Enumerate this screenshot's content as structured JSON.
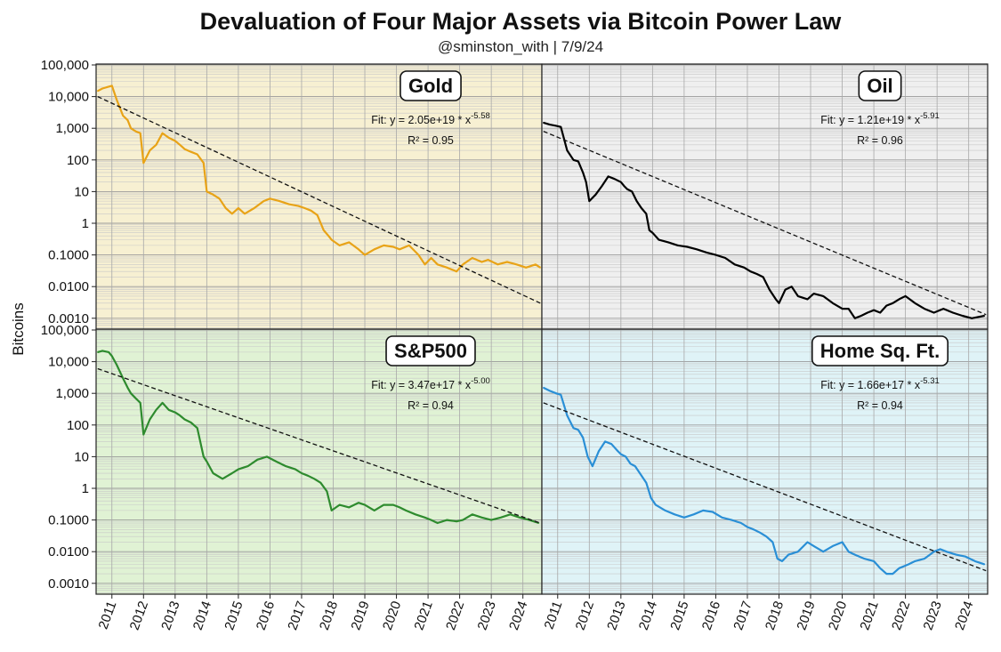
{
  "header": {
    "title": "Devaluation of Four Major Assets via Bitcoin Power Law",
    "subtitle": "@sminston_with  |  7/9/24"
  },
  "shared_axis": {
    "ylabel": "Bitcoins",
    "y_tick_labels": [
      "100,000",
      "10,000",
      "1,000",
      "100",
      "10",
      "1",
      "0.1000",
      "0.0100",
      "0.0010"
    ],
    "y_tick_values": [
      100000,
      10000,
      1000,
      100,
      10,
      1,
      0.1,
      0.01,
      0.001
    ],
    "x_tick_labels": [
      "2011",
      "2012",
      "2013",
      "2014",
      "2015",
      "2016",
      "2017",
      "2018",
      "2019",
      "2020",
      "2021",
      "2022",
      "2023",
      "2024"
    ]
  },
  "chart_data": [
    {
      "type": "line",
      "title": "Gold",
      "fit_prefix": "Fit: y = 2.05e+19 * x",
      "fit_exponent": "-5.58",
      "r2": "R² = 0.95",
      "yscale": "log",
      "ylim": [
        0.0005,
        100000
      ],
      "xlim": [
        2010.5,
        2024.6
      ],
      "colors": {
        "line": "#e8a317",
        "background": "#f7f0d2"
      },
      "series": [
        {
          "x": [
            2010.55,
            2010.7,
            2010.85,
            2011.0,
            2011.15,
            2011.35,
            2011.5,
            2011.6,
            2011.75,
            2011.9,
            2012.0,
            2012.2,
            2012.4,
            2012.6,
            2012.8,
            2013.0,
            2013.15,
            2013.3,
            2013.5,
            2013.7,
            2013.9,
            2014.0,
            2014.2,
            2014.4,
            2014.6,
            2014.8,
            2015.0,
            2015.2,
            2015.5,
            2015.8,
            2016.0,
            2016.3,
            2016.6,
            2016.9,
            2017.1,
            2017.3,
            2017.5,
            2017.7,
            2017.85,
            2017.95,
            2018.2,
            2018.5,
            2018.8,
            2019.0,
            2019.3,
            2019.6,
            2019.9,
            2020.1,
            2020.4,
            2020.7,
            2020.9,
            2021.1,
            2021.3,
            2021.6,
            2021.9,
            2022.1,
            2022.4,
            2022.7,
            2022.9,
            2023.2,
            2023.5,
            2023.8,
            2024.1,
            2024.4,
            2024.55
          ],
          "y": [
            15000,
            18000,
            20000,
            22000,
            8000,
            2500,
            1800,
            1000,
            800,
            700,
            80,
            200,
            300,
            700,
            500,
            400,
            300,
            220,
            180,
            150,
            80,
            10,
            8,
            6,
            3,
            2,
            3,
            2,
            3,
            5,
            6,
            5,
            4,
            3.5,
            3,
            2.5,
            1.8,
            0.6,
            0.4,
            0.3,
            0.2,
            0.25,
            0.15,
            0.1,
            0.15,
            0.2,
            0.18,
            0.15,
            0.2,
            0.1,
            0.05,
            0.08,
            0.05,
            0.04,
            0.03,
            0.05,
            0.08,
            0.06,
            0.07,
            0.05,
            0.06,
            0.05,
            0.04,
            0.05,
            0.04
          ],
          "fit_line": {
            "x": [
              2010.55,
              2024.55
            ],
            "y": [
              10000,
              0.003
            ]
          }
        }
      ]
    },
    {
      "type": "line",
      "title": "Oil",
      "fit_prefix": "Fit: y = 1.21e+19 * x",
      "fit_exponent": "-5.91",
      "r2": "R² = 0.96",
      "yscale": "log",
      "ylim": [
        0.0005,
        100000
      ],
      "xlim": [
        2010.5,
        2024.6
      ],
      "colors": {
        "line": "#000000",
        "background": "#efefef"
      },
      "series": [
        {
          "x": [
            2010.55,
            2010.75,
            2010.95,
            2011.1,
            2011.3,
            2011.5,
            2011.65,
            2011.8,
            2011.9,
            2012.0,
            2012.2,
            2012.4,
            2012.6,
            2012.8,
            2013.0,
            2013.1,
            2013.2,
            2013.35,
            2013.5,
            2013.65,
            2013.8,
            2013.9,
            2014.0,
            2014.2,
            2014.5,
            2014.8,
            2015.1,
            2015.4,
            2015.7,
            2016.0,
            2016.3,
            2016.6,
            2016.9,
            2017.1,
            2017.3,
            2017.5,
            2017.7,
            2017.9,
            2018.0,
            2018.2,
            2018.4,
            2018.6,
            2018.9,
            2019.1,
            2019.4,
            2019.7,
            2020.0,
            2020.2,
            2020.4,
            2020.6,
            2020.8,
            2021.0,
            2021.2,
            2021.4,
            2021.6,
            2021.8,
            2022.0,
            2022.3,
            2022.6,
            2022.9,
            2023.2,
            2023.5,
            2023.8,
            2024.1,
            2024.5
          ],
          "y": [
            1500,
            1300,
            1200,
            1100,
            200,
            100,
            90,
            40,
            20,
            5,
            8,
            15,
            30,
            25,
            20,
            15,
            12,
            10,
            5,
            3,
            2,
            0.6,
            0.5,
            0.3,
            0.25,
            0.2,
            0.18,
            0.15,
            0.12,
            0.1,
            0.08,
            0.05,
            0.04,
            0.03,
            0.025,
            0.02,
            0.008,
            0.004,
            0.003,
            0.008,
            0.01,
            0.005,
            0.004,
            0.006,
            0.005,
            0.003,
            0.002,
            0.002,
            0.001,
            0.0012,
            0.0015,
            0.0018,
            0.0015,
            0.0025,
            0.003,
            0.004,
            0.005,
            0.003,
            0.002,
            0.0015,
            0.002,
            0.0015,
            0.0012,
            0.001,
            0.0012
          ],
          "fit_line": {
            "x": [
              2010.55,
              2024.55
            ],
            "y": [
              800,
              0.0013
            ]
          }
        }
      ]
    },
    {
      "type": "line",
      "title": "S&P500",
      "fit_prefix": "Fit: y = 3.47e+17 * x",
      "fit_exponent": "-5.00",
      "r2": "R² = 0.94",
      "yscale": "log",
      "ylim": [
        0.0005,
        100000
      ],
      "xlim": [
        2010.5,
        2024.6
      ],
      "colors": {
        "line": "#2e8b2e",
        "background": "#e0f2d4"
      },
      "series": [
        {
          "x": [
            2010.55,
            2010.7,
            2010.9,
            2011.0,
            2011.15,
            2011.35,
            2011.5,
            2011.6,
            2011.75,
            2011.9,
            2012.0,
            2012.2,
            2012.4,
            2012.6,
            2012.8,
            2013.0,
            2013.15,
            2013.3,
            2013.5,
            2013.7,
            2013.9,
            2014.0,
            2014.2,
            2014.5,
            2014.8,
            2015.0,
            2015.3,
            2015.6,
            2015.9,
            2016.2,
            2016.5,
            2016.8,
            2017.0,
            2017.2,
            2017.4,
            2017.6,
            2017.8,
            2017.95,
            2018.2,
            2018.5,
            2018.8,
            2019.0,
            2019.3,
            2019.6,
            2019.9,
            2020.1,
            2020.3,
            2020.6,
            2020.9,
            2021.1,
            2021.3,
            2021.6,
            2021.9,
            2022.1,
            2022.4,
            2022.7,
            2023.0,
            2023.3,
            2023.6,
            2023.9,
            2024.2,
            2024.5
          ],
          "y": [
            20000,
            22000,
            20000,
            15000,
            8000,
            3000,
            1500,
            1000,
            700,
            500,
            50,
            150,
            300,
            500,
            300,
            250,
            200,
            150,
            120,
            80,
            10,
            7,
            3,
            2,
            3,
            4,
            5,
            8,
            10,
            7,
            5,
            4,
            3,
            2.5,
            2,
            1.5,
            0.8,
            0.2,
            0.3,
            0.25,
            0.35,
            0.3,
            0.2,
            0.3,
            0.3,
            0.25,
            0.2,
            0.15,
            0.12,
            0.1,
            0.08,
            0.1,
            0.09,
            0.1,
            0.15,
            0.12,
            0.1,
            0.12,
            0.15,
            0.12,
            0.1,
            0.08
          ],
          "fit_line": {
            "x": [
              2010.55,
              2024.55
            ],
            "y": [
              6000,
              0.08
            ]
          }
        }
      ]
    },
    {
      "type": "line",
      "title": "Home Sq. Ft.",
      "fit_prefix": "Fit: y = 1.66e+17 * x",
      "fit_exponent": "-5.31",
      "r2": "R² = 0.94",
      "yscale": "log",
      "ylim": [
        0.0005,
        100000
      ],
      "xlim": [
        2010.5,
        2024.6
      ],
      "colors": {
        "line": "#2a8fd6",
        "background": "#dff3f7"
      },
      "series": [
        {
          "x": [
            2010.55,
            2010.75,
            2010.95,
            2011.1,
            2011.3,
            2011.5,
            2011.65,
            2011.8,
            2011.95,
            2012.1,
            2012.3,
            2012.5,
            2012.7,
            2012.9,
            2013.0,
            2013.15,
            2013.3,
            2013.45,
            2013.6,
            2013.8,
            2013.95,
            2014.1,
            2014.4,
            2014.7,
            2015.0,
            2015.3,
            2015.6,
            2015.9,
            2016.2,
            2016.5,
            2016.8,
            2017.0,
            2017.2,
            2017.4,
            2017.6,
            2017.8,
            2017.95,
            2018.1,
            2018.3,
            2018.6,
            2018.9,
            2019.1,
            2019.4,
            2019.7,
            2020.0,
            2020.2,
            2020.4,
            2020.7,
            2021.0,
            2021.2,
            2021.4,
            2021.6,
            2021.8,
            2022.1,
            2022.3,
            2022.6,
            2022.9,
            2023.1,
            2023.3,
            2023.6,
            2023.9,
            2024.2,
            2024.5
          ],
          "y": [
            1500,
            1200,
            1000,
            900,
            200,
            80,
            70,
            40,
            10,
            5,
            15,
            30,
            25,
            15,
            12,
            10,
            6,
            5,
            3,
            1.5,
            0.5,
            0.3,
            0.2,
            0.15,
            0.12,
            0.15,
            0.2,
            0.18,
            0.12,
            0.1,
            0.08,
            0.06,
            0.05,
            0.04,
            0.03,
            0.02,
            0.006,
            0.005,
            0.008,
            0.01,
            0.02,
            0.015,
            0.01,
            0.015,
            0.02,
            0.01,
            0.008,
            0.006,
            0.005,
            0.003,
            0.002,
            0.002,
            0.003,
            0.004,
            0.005,
            0.006,
            0.01,
            0.012,
            0.01,
            0.008,
            0.007,
            0.005,
            0.004
          ],
          "fit_line": {
            "x": [
              2010.55,
              2024.55
            ],
            "y": [
              500,
              0.0025
            ]
          }
        }
      ]
    }
  ]
}
